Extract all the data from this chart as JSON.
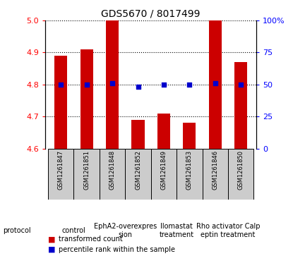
{
  "title": "GDS5670 / 8017499",
  "samples": [
    "GSM1261847",
    "GSM1261851",
    "GSM1261848",
    "GSM1261852",
    "GSM1261849",
    "GSM1261853",
    "GSM1261846",
    "GSM1261850"
  ],
  "transformed_counts": [
    4.89,
    4.91,
    5.0,
    4.69,
    4.71,
    4.68,
    5.0,
    4.87
  ],
  "percentile_ranks": [
    50,
    50,
    51,
    48,
    50,
    50,
    51,
    50
  ],
  "ylim_left": [
    4.6,
    5.0
  ],
  "ylim_right": [
    0,
    100
  ],
  "yticks_left": [
    4.6,
    4.7,
    4.8,
    4.9,
    5.0
  ],
  "yticks_right": [
    0,
    25,
    50,
    75,
    100
  ],
  "protocols": [
    {
      "label": "control",
      "samples": [
        0,
        1
      ],
      "color": "#ccffcc"
    },
    {
      "label": "EphA2-overexpres\nsion",
      "samples": [
        2,
        3
      ],
      "color": "#bbffbb"
    },
    {
      "label": "Ilomastat\ntreatment",
      "samples": [
        4,
        5
      ],
      "color": "#44dd44"
    },
    {
      "label": "Rho activator Calp\neptin treatment",
      "samples": [
        6,
        7
      ],
      "color": "#44dd44"
    }
  ],
  "bar_color": "#cc0000",
  "dot_color": "#0000cc",
  "bar_width": 0.5,
  "sample_box_color": "#cccccc",
  "legend_bar_label": "transformed count",
  "legend_dot_label": "percentile rank within the sample",
  "protocol_label": "protocol",
  "title_fontsize": 10,
  "tick_fontsize": 8,
  "sample_fontsize": 6,
  "protocol_fontsize": 7,
  "legend_fontsize": 7
}
